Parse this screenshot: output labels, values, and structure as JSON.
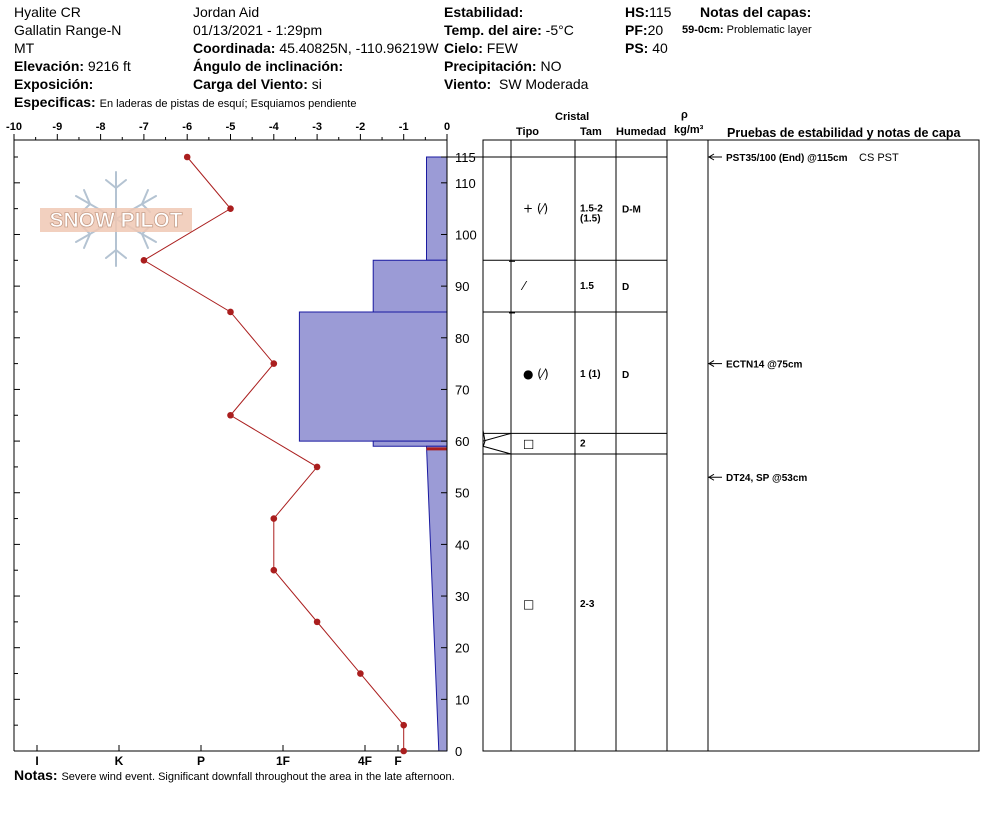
{
  "header": {
    "location": "Hyalite CR",
    "range": "Gallatin Range-N",
    "state": "MT",
    "elevation_label": "Elevación:",
    "elevation": "9216 ft",
    "aspect_label": "Exposición:",
    "aspect": "",
    "observer": "Jordan Aid",
    "datetime": "01/13/2021 - 1:29pm",
    "coord_label": "Coordinada:",
    "coord": "45.40825N, -110.96219W",
    "slope_label": "Ángulo de inclinación:",
    "slope": "",
    "wind_load_label": "Carga del Viento:",
    "wind_load": "si",
    "stability_label": "Estabilidad:",
    "stability": "",
    "air_temp_label": "Temp. del aire:",
    "air_temp": "-5°C",
    "sky_label": "Cielo:",
    "sky": "FEW",
    "precip_label": "Precipitación:",
    "precip": "NO",
    "wind_label": "Viento:",
    "wind": "SW Moderada",
    "hs_label": "HS:",
    "hs": "115",
    "pf_label": "PF:",
    "pf": "20",
    "ps_label": "PS:",
    "ps": "40",
    "layer_notes_label": "Notas del capas:",
    "layer_note_range": "59-0cm:",
    "layer_note_text": "Problematic layer",
    "specifics_label": "Especificas:",
    "specifics": "En laderas de pistas de esquí; Esquiamos pendiente"
  },
  "logo": {
    "text": "SNOW PILOT"
  },
  "columns": {
    "crystal": "Cristal",
    "type": "Tipo",
    "size": "Tam",
    "moisture": "Humedad",
    "density_symbol": "ρ",
    "density_unit": "kg/m³",
    "tests": "Pruebas de estabilidad y notas de capa"
  },
  "notes": {
    "label": "Notas:",
    "text": "Severe wind event. Significant downfall throughout the area in the late afternoon."
  },
  "chart_data": {
    "type": "snow-profile",
    "temperature_axis": {
      "ticks": [
        -10,
        -9,
        -8,
        -7,
        -6,
        -5,
        -4,
        -3,
        -2,
        -1,
        0
      ],
      "tick_labels": [
        "-10",
        "-9",
        "-8",
        "-7",
        "-6",
        "-5",
        "-4",
        "-3",
        "-2",
        "-1",
        "0"
      ],
      "range": [
        -10,
        0
      ]
    },
    "hardness_axis": {
      "labels": [
        "I",
        "K",
        "P",
        "1F",
        "4F",
        "F"
      ],
      "values": [
        5,
        4,
        3,
        2,
        1,
        0
      ]
    },
    "height_axis": {
      "ticks": [
        0,
        10,
        20,
        30,
        40,
        50,
        60,
        70,
        80,
        90,
        100,
        110,
        115
      ],
      "tick_labels": [
        "0",
        "10",
        "20",
        "30",
        "40",
        "50",
        "60",
        "70",
        "80",
        "90",
        "100",
        "110",
        "115"
      ],
      "range": [
        0,
        115
      ]
    },
    "temperature_profile": [
      {
        "height": 115,
        "temp": -6
      },
      {
        "height": 105,
        "temp": -5
      },
      {
        "height": 95,
        "temp": -7
      },
      {
        "height": 85,
        "temp": -5
      },
      {
        "height": 75,
        "temp": -4
      },
      {
        "height": 65,
        "temp": -5
      },
      {
        "height": 55,
        "temp": -3
      },
      {
        "height": 45,
        "temp": -4
      },
      {
        "height": 35,
        "temp": -4
      },
      {
        "height": 25,
        "temp": -3
      },
      {
        "height": 15,
        "temp": -2
      },
      {
        "height": 5,
        "temp": -1
      },
      {
        "height": 0,
        "temp": -1
      }
    ],
    "hardness_profile": [
      {
        "top": 115,
        "bottom": 95,
        "hardness_top": 0.25,
        "hardness_bottom": 0.25
      },
      {
        "top": 95,
        "bottom": 85,
        "hardness_top": 0.9,
        "hardness_bottom": 0.9
      },
      {
        "top": 85,
        "bottom": 60,
        "hardness_top": 1.8,
        "hardness_bottom": 1.8
      },
      {
        "top": 60,
        "bottom": 59,
        "hardness_top": 0.9,
        "hardness_bottom": 0.9
      },
      {
        "top": 59,
        "bottom": 0,
        "hardness_top": 0.25,
        "hardness_bottom": 0.1
      }
    ],
    "marked_layer_height": 58.5,
    "layer_boundaries": [
      115,
      95,
      85,
      61.5,
      57.5
    ],
    "layers": [
      {
        "mid": 105,
        "type": "+ (⁄)",
        "size": "1.5-2",
        "size2": "(1.5)",
        "moisture": "D-M"
      },
      {
        "mid": 90,
        "type": "⁄",
        "size": "1.5",
        "size2": "",
        "moisture": "D"
      },
      {
        "mid": 73,
        "type": "● (⁄)",
        "size": "1 (1)",
        "size2": "",
        "moisture": "D"
      },
      {
        "mid": 59.5,
        "type": "□",
        "size": "2",
        "size2": "",
        "moisture": ""
      },
      {
        "mid": 28.5,
        "type": "□",
        "size": "2-3",
        "size2": "",
        "moisture": ""
      }
    ],
    "tests": [
      {
        "height": 115,
        "result": "PST35/100 (End) @115cm",
        "note": "CS PST"
      },
      {
        "height": 75,
        "result": "ECTN14 @75cm",
        "note": ""
      },
      {
        "height": 53,
        "result": "DT24, SP @53cm",
        "note": ""
      }
    ],
    "colors": {
      "hardness_fill": "#9b9bd6",
      "hardness_stroke": "#1a1aa0",
      "temperature": "#aa1e1e",
      "marked_layer": "#aa1e1e"
    }
  }
}
